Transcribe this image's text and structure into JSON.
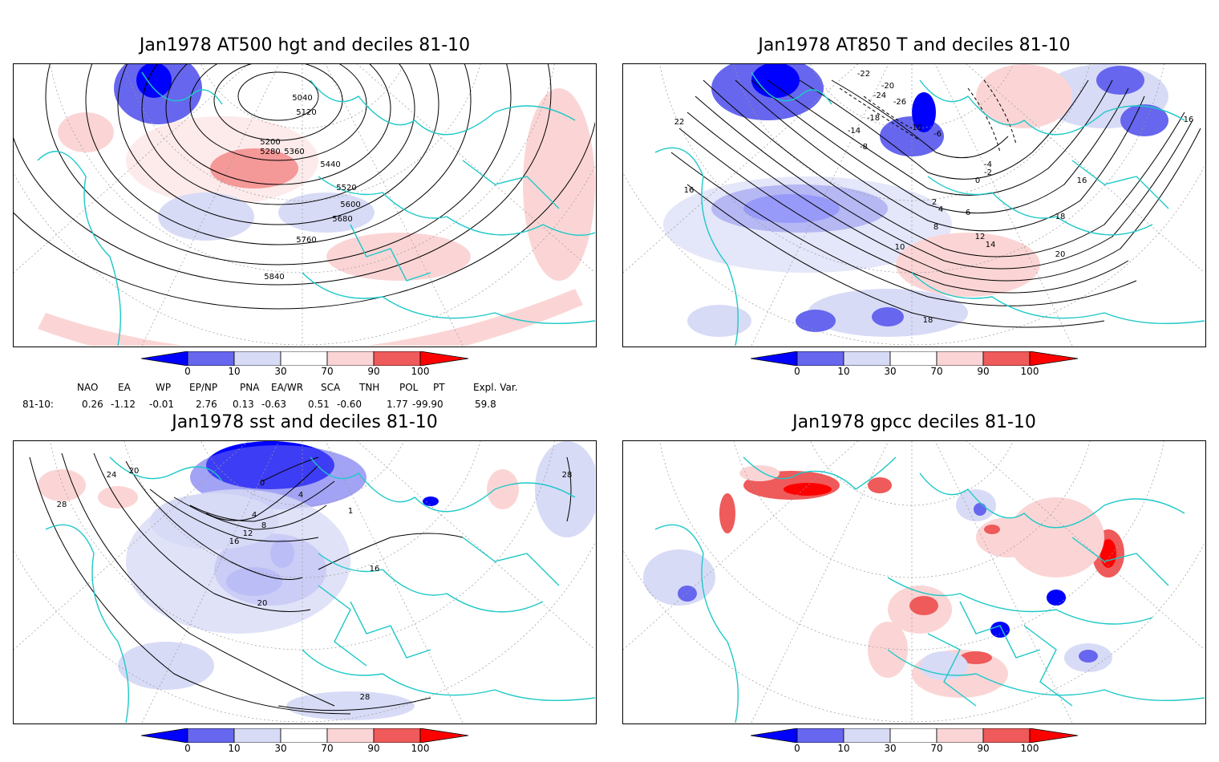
{
  "panels": [
    {
      "title": "Jan1978 AT500 hgt and deciles 81-10",
      "contour_labels": [
        "5040",
        "5120",
        "5200",
        "5280",
        "5360",
        "5440",
        "5520",
        "5600",
        "5680",
        "5760",
        "5840"
      ]
    },
    {
      "title": "Jan1978 AT850 T and deciles 81-10",
      "contour_labels": [
        "-24",
        "-22",
        "-26",
        "-20",
        "-18",
        "-14",
        "-10",
        "-8",
        "-6",
        "-4",
        "-2",
        "0",
        "2",
        "4",
        "6",
        "8",
        "10",
        "12",
        "14",
        "16",
        "18",
        "20",
        "22",
        "16",
        "16",
        "18"
      ]
    },
    {
      "title": "Jan1978 sst and deciles 81-10",
      "contour_labels": [
        "24",
        "28",
        "20",
        "16",
        "12",
        "8",
        "4",
        "0",
        "28",
        "16",
        "20",
        "28",
        "4",
        "1"
      ]
    },
    {
      "title": "Jan1978 gpcc deciles 81-10",
      "contour_labels": []
    }
  ],
  "colorbar": {
    "labels": [
      "0",
      "10",
      "30",
      "70",
      "90",
      "100"
    ],
    "colors": [
      "#0000ff",
      "#6666ee",
      "#d8dbf6",
      "#ffffff",
      "#fbd5d5",
      "#ef5a5a",
      "#ff0000"
    ]
  },
  "teleconnections": {
    "row_label": "81-10:",
    "headers": [
      "NAO",
      "EA",
      "WP",
      "EP/NP",
      "PNA",
      "EA/WR",
      "SCA",
      "TNH",
      "POL",
      "PT",
      "Expl. Var."
    ],
    "values": [
      "0.26",
      "-1.12",
      "-0.01",
      "2.76",
      "0.13",
      "-0.63",
      "0.51",
      "-0.60",
      "1.77",
      "-99.90",
      "59.8"
    ]
  },
  "map_colors": {
    "coast": "#1ec8c8",
    "contour": "#000000",
    "grid": "#999999"
  }
}
